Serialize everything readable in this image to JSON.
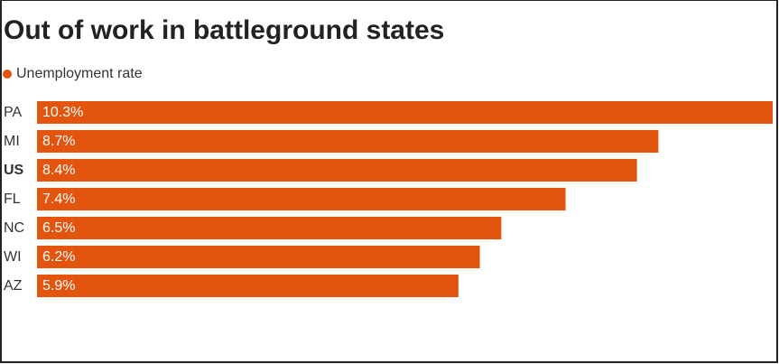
{
  "chart_data": {
    "type": "bar",
    "orientation": "horizontal",
    "title": "Out of work in battleground states",
    "categories": [
      "PA",
      "MI",
      "US",
      "FL",
      "NC",
      "WI",
      "AZ"
    ],
    "highlight_category": "US",
    "series": [
      {
        "name": "Unemployment rate",
        "color": "#e3540f",
        "values": [
          10.3,
          8.7,
          8.4,
          7.4,
          6.5,
          6.2,
          5.9
        ],
        "value_labels": [
          "10.3%",
          "8.7%",
          "8.4%",
          "7.4%",
          "6.5%",
          "6.2%",
          "5.9%"
        ]
      }
    ]
  }
}
